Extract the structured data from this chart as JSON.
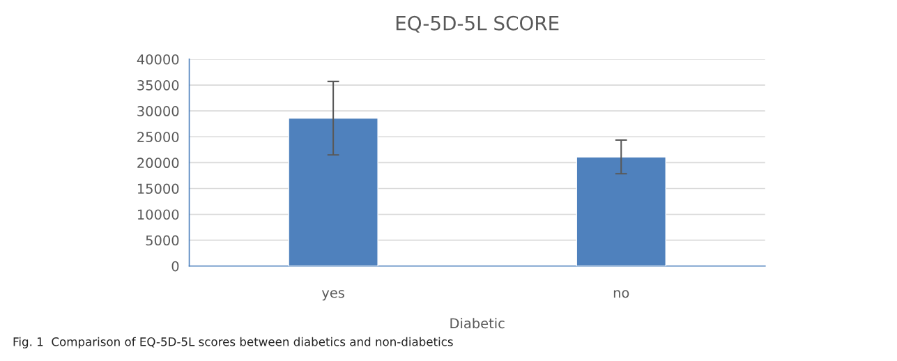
{
  "chart_data": {
    "type": "bar",
    "title": "EQ-5D-5L SCORE",
    "xlabel": "Diabetic",
    "categories": [
      "yes",
      "no"
    ],
    "values": [
      28600,
      21100
    ],
    "errors": [
      7100,
      3250
    ],
    "color": "#4f81bd",
    "ylim": [
      0,
      40000
    ],
    "yticks": [
      0,
      5000,
      10000,
      15000,
      20000,
      25000,
      30000,
      35000,
      40000
    ],
    "grid": "y",
    "annotations": [
      "Fig. 1  Comparison of EQ-5D-5L scores between diabetics and non-diabetics"
    ]
  }
}
